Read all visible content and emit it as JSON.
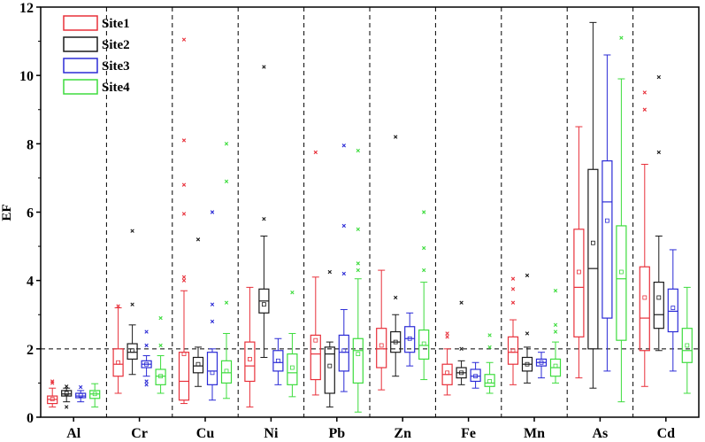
{
  "chart_data": {
    "type": "boxplot",
    "ylabel": "EF",
    "xlabel": "",
    "ylim": [
      0,
      12
    ],
    "yticks": [
      0,
      2,
      4,
      6,
      8,
      10,
      12
    ],
    "reference_line": 2,
    "legend_position": "top-left",
    "categories": [
      "Al",
      "Cr",
      "Cu",
      "Ni",
      "Pb",
      "Zn",
      "Fe",
      "Mn",
      "As",
      "Cd"
    ],
    "series": [
      {
        "name": "Site1",
        "color": "#e8303a",
        "boxes": [
          {
            "whislo": 0.3,
            "q1": 0.4,
            "med": 0.52,
            "q3": 0.62,
            "whishi": 0.85,
            "mean": 0.53,
            "fliers": [
              1.0,
              1.05
            ]
          },
          {
            "whislo": 0.7,
            "q1": 1.2,
            "med": 1.55,
            "q3": 2.0,
            "whishi": 3.2,
            "mean": 1.6,
            "fliers": [
              3.25
            ]
          },
          {
            "whislo": 0.4,
            "q1": 0.5,
            "med": 1.05,
            "q3": 1.9,
            "whishi": 3.7,
            "mean": 1.85,
            "fliers": [
              4.0,
              4.1,
              5.95,
              6.8,
              8.1,
              11.05
            ]
          },
          {
            "whislo": 0.3,
            "q1": 1.05,
            "med": 1.5,
            "q3": 2.2,
            "whishi": 3.8,
            "mean": 1.7,
            "fliers": []
          },
          {
            "whislo": 0.65,
            "q1": 1.1,
            "med": 1.85,
            "q3": 2.4,
            "whishi": 4.1,
            "mean": 2.25,
            "fliers": [
              7.75
            ]
          },
          {
            "whislo": 0.8,
            "q1": 1.45,
            "med": 2.0,
            "q3": 2.6,
            "whishi": 4.3,
            "mean": 2.1,
            "fliers": []
          },
          {
            "whislo": 0.65,
            "q1": 0.95,
            "med": 1.25,
            "q3": 1.55,
            "whishi": 2.0,
            "mean": 1.3,
            "fliers": [
              2.35,
              2.45
            ]
          },
          {
            "whislo": 0.95,
            "q1": 1.55,
            "med": 1.9,
            "q3": 2.35,
            "whishi": 2.85,
            "mean": 1.95,
            "fliers": [
              3.35,
              3.75,
              4.05
            ]
          },
          {
            "whislo": 1.15,
            "q1": 2.35,
            "med": 3.8,
            "q3": 5.5,
            "whishi": 8.5,
            "mean": 4.25,
            "fliers": []
          },
          {
            "whislo": 0.9,
            "q1": 1.95,
            "med": 2.9,
            "q3": 4.4,
            "whishi": 7.4,
            "mean": 3.5,
            "fliers": [
              9.0,
              9.5
            ]
          }
        ]
      },
      {
        "name": "Site2",
        "color": "#1a1a1a",
        "boxes": [
          {
            "whislo": 0.45,
            "q1": 0.62,
            "med": 0.68,
            "q3": 0.78,
            "whishi": 0.85,
            "mean": 0.7,
            "fliers": [
              0.3,
              0.9
            ]
          },
          {
            "whislo": 1.25,
            "q1": 1.7,
            "med": 1.9,
            "q3": 2.15,
            "whishi": 2.7,
            "mean": 1.95,
            "fliers": [
              3.3,
              5.45
            ]
          },
          {
            "whislo": 0.9,
            "q1": 1.3,
            "med": 1.5,
            "q3": 1.75,
            "whishi": 2.05,
            "mean": 1.55,
            "fliers": [
              5.2
            ]
          },
          {
            "whislo": 1.75,
            "q1": 3.05,
            "med": 3.4,
            "q3": 3.75,
            "whishi": 5.3,
            "mean": 3.3,
            "fliers": [
              5.8,
              10.25
            ]
          },
          {
            "whislo": 0.3,
            "q1": 0.7,
            "med": 1.85,
            "q3": 2.05,
            "whishi": 2.2,
            "mean": 1.5,
            "fliers": [
              4.25
            ]
          },
          {
            "whislo": 1.2,
            "q1": 1.9,
            "med": 2.2,
            "q3": 2.5,
            "whishi": 3.0,
            "mean": 2.2,
            "fliers": [
              3.5,
              8.2
            ]
          },
          {
            "whislo": 0.95,
            "q1": 1.15,
            "med": 1.3,
            "q3": 1.45,
            "whishi": 1.65,
            "mean": 1.3,
            "fliers": [
              2.0,
              3.35
            ]
          },
          {
            "whislo": 1.0,
            "q1": 1.35,
            "med": 1.55,
            "q3": 1.75,
            "whishi": 2.05,
            "mean": 1.55,
            "fliers": [
              2.45,
              4.15
            ]
          },
          {
            "whislo": 0.85,
            "q1": 2.0,
            "med": 4.35,
            "q3": 7.25,
            "whishi": 11.55,
            "mean": 5.1,
            "fliers": []
          },
          {
            "whislo": 1.95,
            "q1": 2.6,
            "med": 3.0,
            "q3": 3.95,
            "whishi": 5.3,
            "mean": 3.5,
            "fliers": [
              7.75,
              9.95
            ]
          }
        ]
      },
      {
        "name": "Site3",
        "color": "#2b2bd6",
        "boxes": [
          {
            "whislo": 0.45,
            "q1": 0.57,
            "med": 0.62,
            "q3": 0.7,
            "whishi": 0.78,
            "mean": 0.64,
            "fliers": [
              0.88
            ]
          },
          {
            "whislo": 1.2,
            "q1": 1.45,
            "med": 1.55,
            "q3": 1.65,
            "whishi": 1.8,
            "mean": 1.55,
            "fliers": [
              0.95,
              1.05,
              2.1,
              2.5
            ]
          },
          {
            "whislo": 0.5,
            "q1": 0.95,
            "med": 1.35,
            "q3": 1.9,
            "whishi": 2.0,
            "mean": 1.3,
            "fliers": [
              2.8,
              3.3,
              6.0
            ]
          },
          {
            "whislo": 0.95,
            "q1": 1.35,
            "med": 1.6,
            "q3": 1.95,
            "whishi": 2.3,
            "mean": 1.65,
            "fliers": []
          },
          {
            "whislo": 0.75,
            "q1": 1.35,
            "med": 1.9,
            "q3": 2.4,
            "whishi": 3.15,
            "mean": 1.95,
            "fliers": [
              4.2,
              5.6,
              7.95
            ]
          },
          {
            "whislo": 1.5,
            "q1": 1.9,
            "med": 2.3,
            "q3": 2.65,
            "whishi": 3.05,
            "mean": 2.3,
            "fliers": []
          },
          {
            "whislo": 0.85,
            "q1": 1.05,
            "med": 1.2,
            "q3": 1.4,
            "whishi": 1.6,
            "mean": 1.2,
            "fliers": []
          },
          {
            "whislo": 1.15,
            "q1": 1.5,
            "med": 1.6,
            "q3": 1.7,
            "whishi": 1.9,
            "mean": 1.6,
            "fliers": []
          },
          {
            "whislo": 1.35,
            "q1": 2.9,
            "med": 6.3,
            "q3": 7.5,
            "whishi": 10.6,
            "mean": 5.75,
            "fliers": []
          },
          {
            "whislo": 1.35,
            "q1": 2.5,
            "med": 3.1,
            "q3": 3.75,
            "whishi": 4.9,
            "mean": 3.2,
            "fliers": []
          }
        ]
      },
      {
        "name": "Site4",
        "color": "#3ddc3d",
        "boxes": [
          {
            "whislo": 0.3,
            "q1": 0.55,
            "med": 0.68,
            "q3": 0.78,
            "whishi": 0.98,
            "mean": 0.68,
            "fliers": []
          },
          {
            "whislo": 0.7,
            "q1": 0.95,
            "med": 1.2,
            "q3": 1.4,
            "whishi": 1.8,
            "mean": 1.2,
            "fliers": [
              2.1,
              2.9
            ]
          },
          {
            "whislo": 0.55,
            "q1": 1.0,
            "med": 1.3,
            "q3": 1.65,
            "whishi": 2.45,
            "mean": 1.35,
            "fliers": [
              3.35,
              6.9,
              8.0
            ]
          },
          {
            "whislo": 0.6,
            "q1": 0.95,
            "med": 1.3,
            "q3": 1.85,
            "whishi": 2.45,
            "mean": 1.45,
            "fliers": [
              3.65
            ]
          },
          {
            "whislo": 0.15,
            "q1": 1.0,
            "med": 1.95,
            "q3": 2.3,
            "whishi": 4.05,
            "mean": 1.85,
            "fliers": [
              4.3,
              4.5,
              5.5,
              7.8
            ]
          },
          {
            "whislo": 1.1,
            "q1": 1.7,
            "med": 2.1,
            "q3": 2.55,
            "whishi": 3.95,
            "mean": 2.15,
            "fliers": [
              4.3,
              4.95,
              6.0
            ]
          },
          {
            "whislo": 0.7,
            "q1": 0.9,
            "med": 1.0,
            "q3": 1.25,
            "whishi": 1.6,
            "mean": 1.05,
            "fliers": [
              2.05,
              2.4
            ]
          },
          {
            "whislo": 1.0,
            "q1": 1.2,
            "med": 1.45,
            "q3": 1.7,
            "whishi": 2.2,
            "mean": 1.5,
            "fliers": [
              2.5,
              2.7,
              3.7
            ]
          },
          {
            "whislo": 0.45,
            "q1": 2.25,
            "med": 4.05,
            "q3": 5.6,
            "whishi": 9.9,
            "mean": 4.25,
            "fliers": [
              11.1
            ]
          },
          {
            "whislo": 0.7,
            "q1": 1.6,
            "med": 1.95,
            "q3": 2.6,
            "whishi": 3.8,
            "mean": 2.1,
            "fliers": []
          }
        ]
      }
    ]
  }
}
